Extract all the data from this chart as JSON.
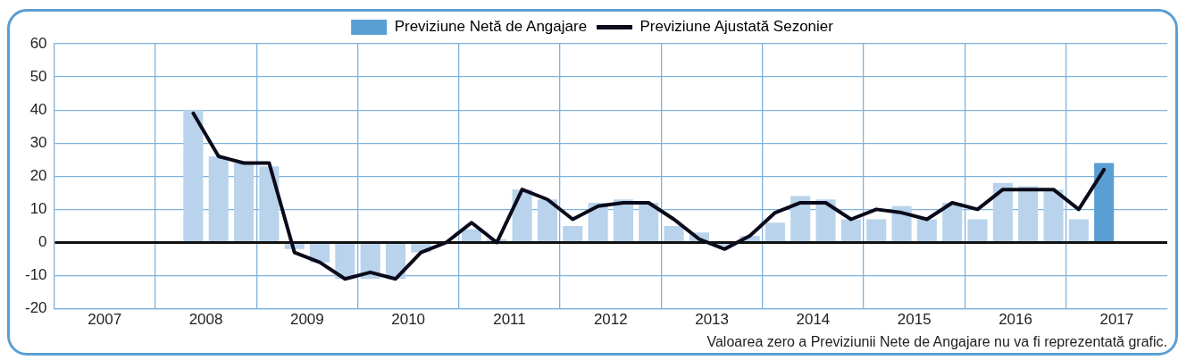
{
  "chart_data": {
    "type": "bar",
    "x": [
      2008.375,
      2008.625,
      2008.875,
      2009.125,
      2009.375,
      2009.625,
      2009.875,
      2010.125,
      2010.375,
      2010.625,
      2010.875,
      2011.125,
      2011.375,
      2011.625,
      2011.875,
      2012.125,
      2012.375,
      2012.625,
      2012.875,
      2013.125,
      2013.375,
      2013.625,
      2013.875,
      2014.125,
      2014.375,
      2014.625,
      2014.875,
      2015.125,
      2015.375,
      2015.625,
      2015.875,
      2016.125,
      2016.375,
      2016.625,
      2016.875,
      2017.125,
      2017.375
    ],
    "series": [
      {
        "name": "Previziune Netă de Angajare",
        "color": "#5a9fd4",
        "colors": [
          "#b8d3eb",
          "#b8d3eb",
          "#b8d3eb",
          "#b8d3eb",
          "#b8d3eb",
          "#b8d3eb",
          "#b8d3eb",
          "#b8d3eb",
          "#b8d3eb",
          "#b8d3eb",
          "#b8d3eb",
          "#b8d3eb",
          "#b8d3eb",
          "#b8d3eb",
          "#b8d3eb",
          "#b8d3eb",
          "#b8d3eb",
          "#b8d3eb",
          "#b8d3eb",
          "#b8d3eb",
          "#b8d3eb",
          "#b8d3eb",
          "#b8d3eb",
          "#b8d3eb",
          "#b8d3eb",
          "#b8d3eb",
          "#b8d3eb",
          "#b8d3eb",
          "#b8d3eb",
          "#b8d3eb",
          "#b8d3eb",
          "#b8d3eb",
          "#b8d3eb",
          "#b8d3eb",
          "#b8d3eb",
          "#b8d3eb",
          "#5a9fd4"
        ],
        "values": [
          40,
          26,
          24,
          23,
          -2,
          -6,
          -11,
          -11,
          -11,
          -3,
          0,
          4,
          1,
          16,
          13,
          5,
          12,
          13,
          12,
          5,
          3,
          -1,
          2,
          6,
          14,
          13,
          7,
          7,
          11,
          7,
          12,
          7,
          18,
          17,
          16,
          7,
          24
        ]
      },
      {
        "name": "Previziune Ajustată Sezonier",
        "type": "line",
        "color": "#0a0a1a",
        "values": [
          39,
          26,
          24,
          24,
          -3,
          -6,
          -11,
          -9,
          -11,
          -3,
          0,
          6,
          0,
          16,
          13,
          7,
          11,
          12,
          12,
          7,
          1,
          -2,
          2,
          9,
          12,
          12,
          7,
          10,
          9,
          7,
          12,
          10,
          16,
          16,
          16,
          10,
          22
        ]
      }
    ],
    "xlim": [
      2007,
      2018
    ],
    "xticks": [
      {
        "value": 2007.5,
        "label": "2007"
      },
      {
        "value": 2008,
        "label": null
      },
      {
        "value": 2008.5,
        "label": "2008"
      },
      {
        "value": 2009,
        "label": null
      },
      {
        "value": 2009.5,
        "label": "2009"
      },
      {
        "value": 2010,
        "label": null
      },
      {
        "value": 2010.5,
        "label": "2010"
      },
      {
        "value": 2011,
        "label": null
      },
      {
        "value": 2011.5,
        "label": "2011"
      },
      {
        "value": 2012,
        "label": null
      },
      {
        "value": 2012.5,
        "label": "2012"
      },
      {
        "value": 2013,
        "label": null
      },
      {
        "value": 2013.5,
        "label": "2013"
      },
      {
        "value": 2014,
        "label": null
      },
      {
        "value": 2014.5,
        "label": "2014"
      },
      {
        "value": 2015,
        "label": null
      },
      {
        "value": 2015.5,
        "label": "2015"
      },
      {
        "value": 2016,
        "label": null
      },
      {
        "value": 2016.5,
        "label": "2016"
      },
      {
        "value": 2017,
        "label": null
      },
      {
        "value": 2017.5,
        "label": "2017"
      }
    ],
    "ylim": [
      -20,
      60
    ],
    "yticks": [
      -20,
      -10,
      0,
      10,
      20,
      30,
      40,
      50,
      60
    ],
    "grid": true,
    "legend": "top",
    "marker": "none",
    "line_style": "solid",
    "annotations": [
      "Valoarea zero a Previziunii Nete de Angajare nu va fi reprezentată grafic."
    ]
  }
}
